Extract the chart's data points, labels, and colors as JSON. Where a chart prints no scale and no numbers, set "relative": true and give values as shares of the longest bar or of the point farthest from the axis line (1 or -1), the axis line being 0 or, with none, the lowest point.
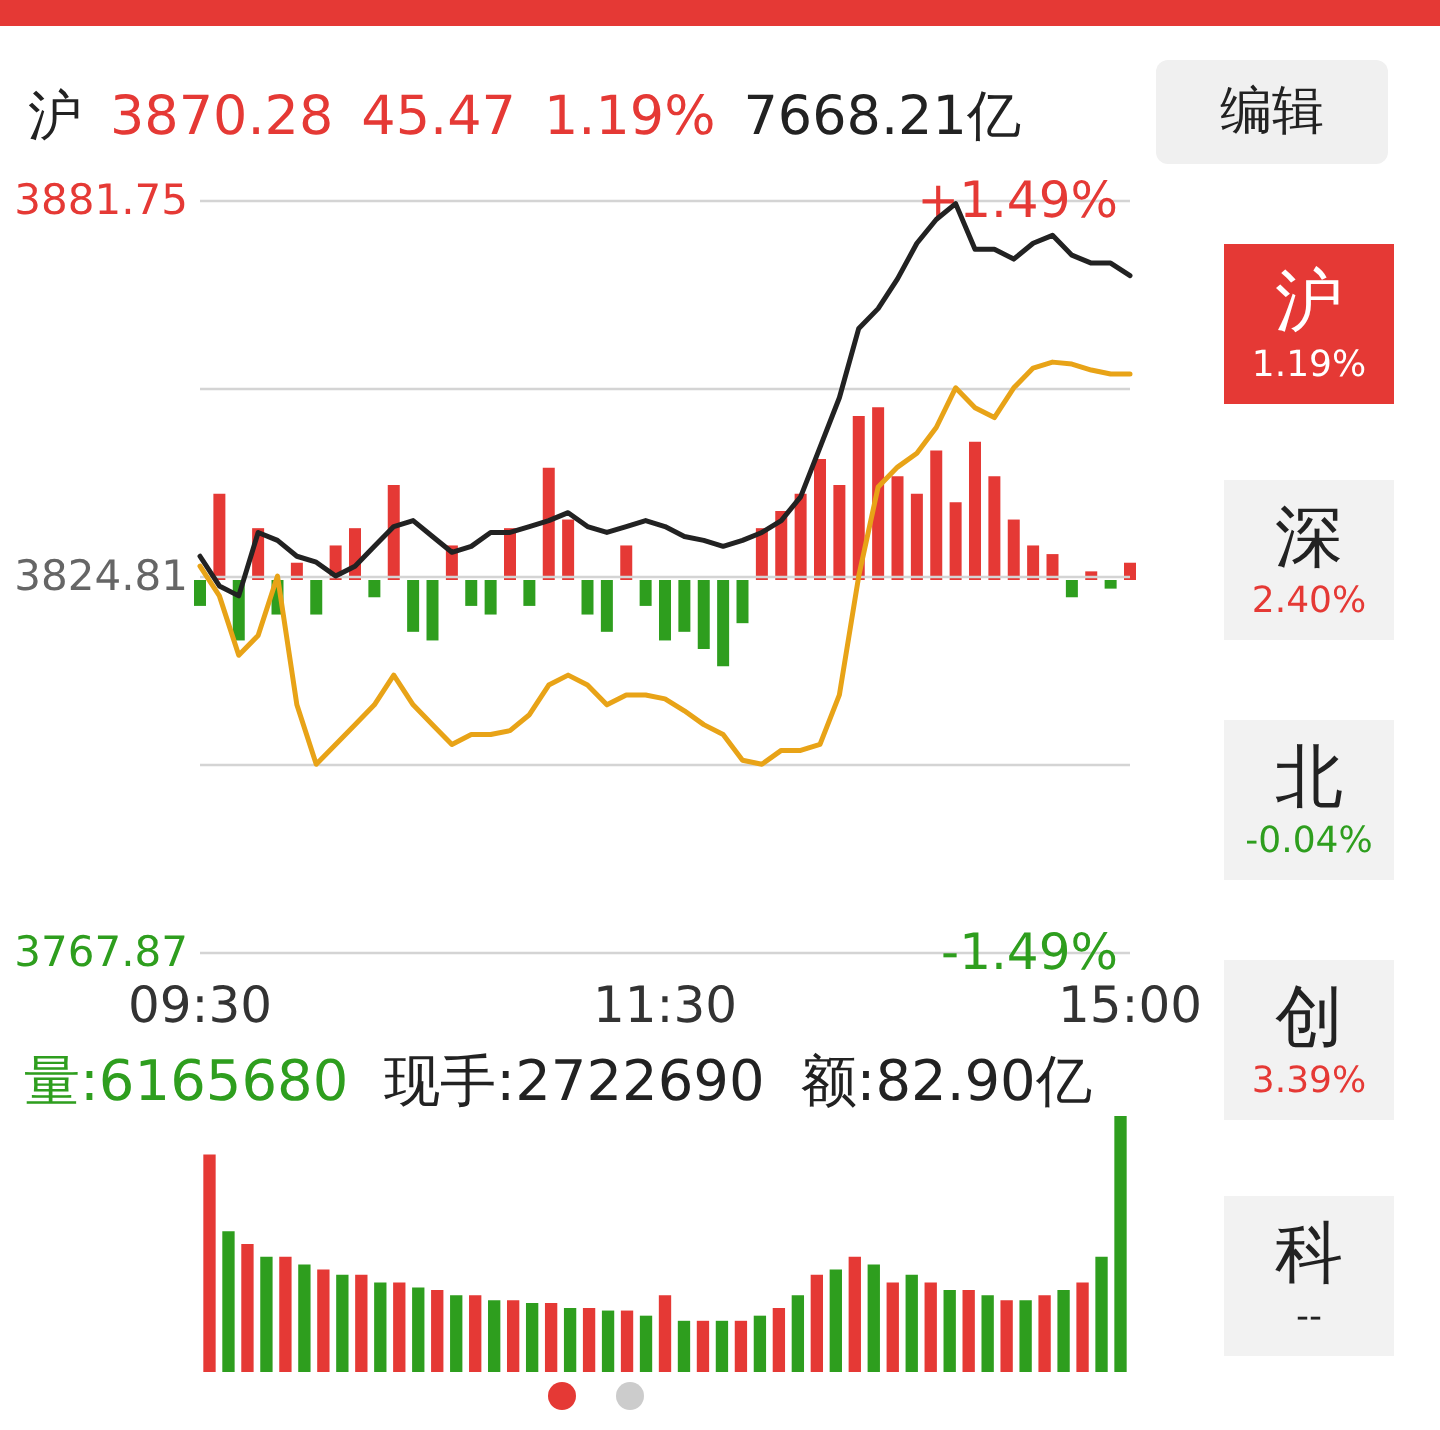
{
  "chart_data": [
    {
      "type": "line",
      "categories": [
        "09:30",
        null,
        null,
        null,
        null,
        null,
        null,
        null,
        null,
        null,
        null,
        null,
        null,
        null,
        null,
        null,
        null,
        null,
        null,
        null,
        null,
        null,
        null,
        null,
        "11:30",
        null,
        null,
        null,
        null,
        null,
        null,
        null,
        null,
        null,
        null,
        null,
        null,
        null,
        null,
        null,
        null,
        null,
        null,
        null,
        null,
        null,
        null,
        null,
        "15:00"
      ],
      "series": [
        {
          "color": "#222222",
          "values": [
            3827.8,
            3823.3,
            3821.8,
            3831.4,
            3830.2,
            3827.8,
            3826.9,
            3824.8,
            3826.3,
            3829.3,
            3832.3,
            3833.2,
            3830.8,
            3828.4,
            3829.3,
            3831.4,
            3831.4,
            3832.3,
            3833.2,
            3834.4,
            3832.3,
            3831.4,
            3832.3,
            3833.2,
            3832.3,
            3830.8,
            3830.2,
            3829.3,
            3830.2,
            3831.4,
            3833.2,
            3836.8,
            3844.3,
            3851.8,
            3862.3,
            3865.3,
            3869.8,
            3875.2,
            3878.8,
            3881.2,
            3874.3,
            3874.3,
            3872.8,
            3875.2,
            3876.4,
            3873.4,
            3872.2,
            3872.2,
            3870.3
          ]
        },
        {
          "color": "#e8a317",
          "values": [
            3826.3,
            3821.8,
            3812.8,
            3815.8,
            3824.8,
            3805.3,
            3796.3,
            3799.3,
            3802.3,
            3805.3,
            3809.8,
            3805.3,
            3802.3,
            3799.3,
            3800.8,
            3800.8,
            3801.4,
            3803.8,
            3808.3,
            3809.8,
            3808.3,
            3805.3,
            3806.8,
            3806.8,
            3806.2,
            3804.4,
            3802.3,
            3800.8,
            3796.9,
            3796.3,
            3798.4,
            3798.4,
            3799.3,
            3806.8,
            3824.8,
            3838.3,
            3841.3,
            3843.4,
            3847.3,
            3853.3,
            3850.3,
            3848.8,
            3853.3,
            3856.3,
            3857.2,
            3856.9,
            3856.0,
            3855.4,
            3855.4
          ]
        }
      ],
      "ylim": [
        3767.87,
        3881.75
      ],
      "yticks": [
        3767.87,
        {
          "value": 3796.34,
          "label": null
        },
        3824.81,
        {
          "value": 3853.28,
          "label": null
        },
        3881.75
      ],
      "y2lim": [
        -1.49,
        1.49
      ],
      "y2ticks": [
        {
          "value": -1.49,
          "label": "-1.49%"
        },
        {
          "value": 1.49,
          "label": "+1.49%"
        }
      ],
      "grid": "y"
    },
    {
      "type": "bar",
      "relative": true,
      "categories": [
        null,
        null,
        null,
        null,
        null,
        null,
        null,
        null,
        null,
        null,
        null,
        null,
        null,
        null,
        null,
        null,
        null,
        null,
        null,
        null,
        null,
        null,
        null,
        null,
        null,
        null,
        null,
        null,
        null,
        null,
        null,
        null,
        null,
        null,
        null,
        null,
        null,
        null,
        null,
        null,
        null,
        null,
        null,
        null,
        null,
        null,
        null,
        null,
        null
      ],
      "values": [
        -0.15,
        0.5,
        -0.35,
        0.3,
        -0.2,
        0.1,
        -0.2,
        0.2,
        0.3,
        -0.1,
        0.55,
        -0.3,
        -0.35,
        0.2,
        -0.15,
        -0.2,
        0.3,
        -0.15,
        0.65,
        0.35,
        -0.2,
        -0.3,
        0.2,
        -0.15,
        -0.35,
        -0.3,
        -0.4,
        -0.5,
        -0.25,
        0.3,
        0.4,
        0.5,
        0.7,
        0.55,
        0.95,
        1,
        0.6,
        0.5,
        0.75,
        0.45,
        0.8,
        0.6,
        0.35,
        0.2,
        0.15,
        -0.1,
        0.05,
        -0.05,
        0.1
      ],
      "colors": [
        "#2e9e1e",
        "#e53935",
        "#2e9e1e",
        "#e53935",
        "#2e9e1e",
        "#e53935",
        "#2e9e1e",
        "#e53935",
        "#e53935",
        "#2e9e1e",
        "#e53935",
        "#2e9e1e",
        "#2e9e1e",
        "#e53935",
        "#2e9e1e",
        "#2e9e1e",
        "#e53935",
        "#2e9e1e",
        "#e53935",
        "#e53935",
        "#2e9e1e",
        "#2e9e1e",
        "#e53935",
        "#2e9e1e",
        "#2e9e1e",
        "#2e9e1e",
        "#2e9e1e",
        "#2e9e1e",
        "#2e9e1e",
        "#e53935",
        "#e53935",
        "#e53935",
        "#e53935",
        "#e53935",
        "#e53935",
        "#e53935",
        "#e53935",
        "#e53935",
        "#e53935",
        "#e53935",
        "#e53935",
        "#e53935",
        "#e53935",
        "#e53935",
        "#e53935",
        "#2e9e1e",
        "#e53935",
        "#2e9e1e",
        "#e53935"
      ]
    },
    {
      "type": "bar",
      "relative": true,
      "annotations": [
        "量:6165680",
        "现手:2722690",
        "额:82.90亿"
      ],
      "categories": [
        null,
        null,
        null,
        null,
        null,
        null,
        null,
        null,
        null,
        null,
        null,
        null,
        null,
        null,
        null,
        null,
        null,
        null,
        null,
        null,
        null,
        null,
        null,
        null,
        null,
        null,
        null,
        null,
        null,
        null,
        null,
        null,
        null,
        null,
        null,
        null,
        null,
        null,
        null,
        null,
        null,
        null,
        null,
        null,
        null,
        null,
        null,
        null,
        null
      ],
      "values": [
        0.85,
        0.55,
        0.5,
        0.45,
        0.45,
        0.42,
        0.4,
        0.38,
        0.38,
        0.35,
        0.35,
        0.33,
        0.32,
        0.3,
        0.3,
        0.28,
        0.28,
        0.27,
        0.27,
        0.25,
        0.25,
        0.24,
        0.24,
        0.22,
        0.3,
        0.2,
        0.2,
        0.2,
        0.2,
        0.22,
        0.25,
        0.3,
        0.38,
        0.4,
        0.45,
        0.42,
        0.35,
        0.38,
        0.35,
        0.32,
        0.32,
        0.3,
        0.28,
        0.28,
        0.3,
        0.32,
        0.35,
        0.45,
        1
      ],
      "colors": [
        "#e53935",
        "#2e9e1e",
        "#e53935",
        "#2e9e1e",
        "#e53935",
        "#2e9e1e",
        "#e53935",
        "#2e9e1e",
        "#e53935",
        "#2e9e1e",
        "#e53935",
        "#2e9e1e",
        "#e53935",
        "#2e9e1e",
        "#e53935",
        "#2e9e1e",
        "#e53935",
        "#2e9e1e",
        "#e53935",
        "#2e9e1e",
        "#e53935",
        "#2e9e1e",
        "#e53935",
        "#2e9e1e",
        "#e53935",
        "#2e9e1e",
        "#e53935",
        "#2e9e1e",
        "#e53935",
        "#2e9e1e",
        "#e53935",
        "#2e9e1e",
        "#e53935",
        "#2e9e1e",
        "#e53935",
        "#2e9e1e",
        "#e53935",
        "#2e9e1e",
        "#e53935",
        "#2e9e1e",
        "#e53935",
        "#2e9e1e",
        "#e53935",
        "#2e9e1e",
        "#e53935",
        "#2e9e1e",
        "#e53935",
        "#2e9e1e",
        "#2e9e1e"
      ]
    },
    {
      "type": "other",
      "annotations": [
        "沪",
        "3870.28",
        "45.47",
        "1.19%",
        "7668.21亿",
        "编辑",
        "沪",
        "1.19%",
        "深",
        "2.40%",
        "北",
        "-0.04%",
        "创",
        "3.39%",
        "科",
        "--"
      ]
    }
  ]
}
